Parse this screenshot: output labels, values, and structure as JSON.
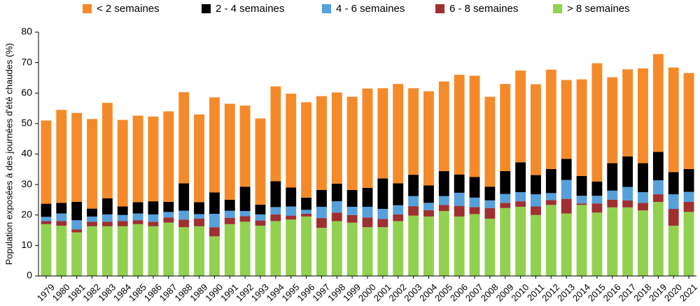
{
  "chart_data": {
    "type": "bar",
    "stacked": true,
    "title": "",
    "xlabel": "",
    "ylabel": "Population exposées à des journées d'été chaudes (%)",
    "ylim": [
      0,
      80
    ],
    "yticks": [
      0,
      10,
      20,
      30,
      40,
      50,
      60,
      70,
      80
    ],
    "grid": false,
    "legend_position": "top",
    "categories": [
      "1979",
      "1980",
      "1981",
      "1982",
      "1983",
      "1984",
      "1985",
      "1986",
      "1987",
      "1988",
      "1989",
      "1990",
      "1991",
      "1992",
      "1993",
      "1994",
      "1995",
      "1996",
      "1997",
      "1998",
      "1999",
      "2000",
      "2001",
      "2002",
      "2003",
      "2004",
      "2005",
      "2006",
      "2007",
      "2008",
      "2009",
      "2010",
      "2011",
      "2012",
      "2013",
      "2014",
      "2015",
      "2016",
      "2017",
      "2018",
      "2019",
      "2020",
      "2021"
    ],
    "series": [
      {
        "name": "> 8 semaines",
        "color": "#92d050",
        "values": [
          17,
          16.5,
          14.3,
          16.3,
          16.3,
          16.3,
          17,
          16.3,
          17.5,
          16,
          16.3,
          13,
          17,
          17.8,
          16.5,
          18,
          18.5,
          19.5,
          15.8,
          18,
          17.5,
          16,
          16,
          18,
          19.8,
          19.5,
          21.3,
          19.5,
          20.3,
          18.8,
          22.3,
          22.7,
          20,
          23.3,
          20.5,
          23.3,
          20.8,
          22.5,
          22.5,
          21.5,
          24.3,
          16.5,
          21
        ]
      },
      {
        "name": "6 - 8 semaines",
        "color": "#9e3030",
        "values": [
          1,
          1.5,
          1,
          1.5,
          1.5,
          1.7,
          1.3,
          1.5,
          1.7,
          2.5,
          2.5,
          3,
          2.1,
          1.8,
          1.7,
          2.2,
          1.3,
          0.9,
          3.2,
          2.8,
          2.5,
          3.2,
          2.7,
          2.2,
          3.1,
          2.1,
          2,
          3.5,
          2.3,
          3.5,
          1.7,
          1.8,
          2.8,
          1.6,
          4.8,
          0.5,
          3,
          2.5,
          2.3,
          2.5,
          2.5,
          5.5,
          3.3
        ]
      },
      {
        "name": "4 - 6 semaines",
        "color": "#56a0dc",
        "values": [
          1.4,
          2.5,
          3,
          1.7,
          2.4,
          2,
          2.2,
          2.4,
          1.8,
          2.9,
          1.5,
          4.4,
          2.3,
          1.7,
          2,
          2.4,
          3,
          1.3,
          3.7,
          3.7,
          2.7,
          3.5,
          3.3,
          3,
          3.3,
          2.4,
          2.9,
          4.3,
          3.1,
          2.5,
          2.9,
          3,
          4,
          2.3,
          6.2,
          2.5,
          2.5,
          3,
          4.4,
          3.5,
          4.6,
          4.8,
          3.3
        ]
      },
      {
        "name": "2 - 4 semaines",
        "color": "#000000",
        "values": [
          4.3,
          3.5,
          6,
          2.6,
          5.3,
          2.8,
          3.7,
          4.3,
          3.3,
          9,
          3.9,
          7,
          3.6,
          8,
          3.2,
          8.5,
          6.2,
          4,
          5.5,
          5.8,
          5.5,
          6.2,
          10,
          7.2,
          7,
          5.7,
          8.2,
          6,
          6.8,
          4.5,
          7.5,
          9.8,
          6.3,
          7.9,
          6.9,
          6.5,
          4.7,
          9,
          10,
          9.5,
          9.3,
          7.3,
          7.5
        ]
      },
      {
        "name": "< 2 semaines",
        "color": "#f58a2a",
        "values": [
          27.3,
          30.5,
          29.2,
          29.4,
          31.3,
          28.4,
          28.4,
          27.8,
          29.7,
          29.9,
          28.8,
          31.2,
          31.5,
          26.6,
          28.3,
          31.1,
          30.8,
          31.3,
          30.8,
          29.9,
          30.6,
          32.6,
          29.6,
          32.6,
          28.4,
          30.9,
          29.4,
          32.7,
          33.2,
          29.5,
          28.6,
          30.1,
          29.8,
          32.6,
          25.9,
          31.7,
          38.8,
          28.2,
          28.6,
          31.1,
          32.1,
          34.3,
          31.5
        ]
      }
    ]
  }
}
